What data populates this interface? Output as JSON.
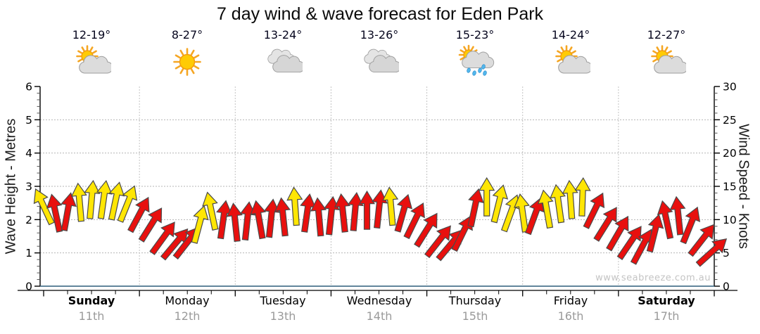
{
  "title": "7 day wind & wave forecast for Eden Park",
  "watermark": "www.seabreeze.com.au",
  "colors": {
    "arrow_red": "#E8100E",
    "arrow_yellow": "#FFE604",
    "arrow_outline": "#4a4a4a",
    "baseline_blue": "#2d5d7a",
    "grid_gray": "#b5b5b5",
    "date_gray": "#9a9a9a",
    "watermark_gray": "#c4c4c4"
  },
  "chart_data": {
    "type": "scatter",
    "marker": "wind-direction-arrow",
    "title": "7 day wind & wave forecast for Eden Park",
    "left_axis": {
      "label": "Wave Height - Metres",
      "ticks": [
        "0",
        "1",
        "2",
        "3",
        "4",
        "5",
        "6"
      ],
      "range": [
        0,
        6
      ]
    },
    "right_axis": {
      "label": "Wind Speed - Knots",
      "ticks": [
        "0",
        "5",
        "10",
        "15",
        "20",
        "25",
        "30"
      ],
      "range": [
        0,
        30
      ]
    },
    "grid": "dotted horizontal line every 5 knots (1 m), dotted vertical line at each day boundary",
    "days": [
      {
        "name": "Sunday",
        "date": "11th",
        "temps": "12-19°",
        "icon": "partly-cloudy",
        "weekend": true
      },
      {
        "name": "Monday",
        "date": "12th",
        "temps": "8-27°",
        "icon": "sunny",
        "weekend": false
      },
      {
        "name": "Tuesday",
        "date": "13th",
        "temps": "13-24°",
        "icon": "cloudy",
        "weekend": false
      },
      {
        "name": "Wednesday",
        "date": "14th",
        "temps": "13-26°",
        "icon": "cloudy",
        "weekend": false
      },
      {
        "name": "Thursday",
        "date": "15th",
        "temps": "15-23°",
        "icon": "showers",
        "weekend": false
      },
      {
        "name": "Friday",
        "date": "16th",
        "temps": "14-24°",
        "icon": "partly-cloudy",
        "weekend": false
      },
      {
        "name": "Saturday",
        "date": "17th",
        "temps": "12-27°",
        "icon": "partly-cloudy",
        "weekend": true
      }
    ],
    "point_format": [
      "day",
      "hour_24",
      "wind_speed_knots",
      "arrow_color",
      "direction_deg_clockwise_from_up"
    ],
    "points": [
      [
        "Sunday",
        0,
        12.0,
        "yellow",
        -25
      ],
      [
        "Sunday",
        3,
        11.0,
        "red",
        -12
      ],
      [
        "Sunday",
        6,
        11.2,
        "red",
        10
      ],
      [
        "Sunday",
        9,
        12.6,
        "yellow",
        -5
      ],
      [
        "Sunday",
        12,
        13.0,
        "yellow",
        5
      ],
      [
        "Sunday",
        15,
        13.0,
        "yellow",
        8
      ],
      [
        "Sunday",
        18,
        12.8,
        "yellow",
        12
      ],
      [
        "Sunday",
        21,
        12.4,
        "yellow",
        22
      ],
      [
        "Monday",
        0,
        10.8,
        "red",
        28
      ],
      [
        "Monday",
        3,
        9.3,
        "red",
        32
      ],
      [
        "Monday",
        6,
        7.3,
        "red",
        36
      ],
      [
        "Monday",
        9,
        6.4,
        "red",
        40
      ],
      [
        "Monday",
        12,
        6.6,
        "red",
        38
      ],
      [
        "Monday",
        15,
        9.3,
        "yellow",
        15
      ],
      [
        "Monday",
        18,
        11.3,
        "yellow",
        -12
      ],
      [
        "Monday",
        21,
        10.0,
        "red",
        8
      ],
      [
        "Tuesday",
        0,
        9.6,
        "red",
        -6
      ],
      [
        "Tuesday",
        3,
        9.8,
        "red",
        6
      ],
      [
        "Tuesday",
        6,
        10.0,
        "red",
        -10
      ],
      [
        "Tuesday",
        9,
        10.2,
        "red",
        6
      ],
      [
        "Tuesday",
        12,
        10.4,
        "red",
        -6
      ],
      [
        "Tuesday",
        15,
        12.0,
        "yellow",
        -4
      ],
      [
        "Tuesday",
        18,
        11.0,
        "red",
        8
      ],
      [
        "Tuesday",
        21,
        10.4,
        "red",
        -5
      ],
      [
        "Wednesday",
        0,
        10.6,
        "red",
        6
      ],
      [
        "Wednesday",
        3,
        11.0,
        "red",
        -6
      ],
      [
        "Wednesday",
        6,
        11.2,
        "red",
        5
      ],
      [
        "Wednesday",
        9,
        11.4,
        "red",
        0
      ],
      [
        "Wednesday",
        12,
        11.6,
        "red",
        6
      ],
      [
        "Wednesday",
        15,
        12.0,
        "yellow",
        -5
      ],
      [
        "Wednesday",
        18,
        11.0,
        "red",
        16
      ],
      [
        "Wednesday",
        21,
        9.9,
        "red",
        26
      ],
      [
        "Thursday",
        0,
        8.5,
        "red",
        32
      ],
      [
        "Thursday",
        3,
        6.8,
        "red",
        38
      ],
      [
        "Thursday",
        6,
        6.3,
        "red",
        40
      ],
      [
        "Thursday",
        9,
        8.0,
        "red",
        26
      ],
      [
        "Thursday",
        12,
        11.8,
        "red",
        12
      ],
      [
        "Thursday",
        15,
        13.4,
        "yellow",
        0
      ],
      [
        "Thursday",
        18,
        12.4,
        "yellow",
        14
      ],
      [
        "Thursday",
        21,
        11.0,
        "yellow",
        20
      ],
      [
        "Friday",
        0,
        11.0,
        "yellow",
        -8
      ],
      [
        "Friday",
        3,
        10.6,
        "red",
        20
      ],
      [
        "Friday",
        6,
        11.6,
        "yellow",
        -10
      ],
      [
        "Friday",
        9,
        12.4,
        "yellow",
        -8
      ],
      [
        "Friday",
        12,
        13.0,
        "yellow",
        -4
      ],
      [
        "Friday",
        15,
        13.4,
        "yellow",
        2
      ],
      [
        "Friday",
        18,
        11.4,
        "red",
        26
      ],
      [
        "Friday",
        21,
        9.4,
        "red",
        32
      ],
      [
        "Saturday",
        0,
        8.0,
        "red",
        30
      ],
      [
        "Saturday",
        3,
        6.6,
        "red",
        34
      ],
      [
        "Saturday",
        6,
        6.0,
        "red",
        28
      ],
      [
        "Saturday",
        9,
        8.0,
        "red",
        14
      ],
      [
        "Saturday",
        12,
        10.0,
        "red",
        -12
      ],
      [
        "Saturday",
        15,
        10.6,
        "red",
        -6
      ],
      [
        "Saturday",
        18,
        9.2,
        "red",
        22
      ],
      [
        "Saturday",
        21,
        7.0,
        "red",
        38
      ],
      [
        "Saturday",
        23.5,
        5.2,
        "red",
        48
      ]
    ]
  }
}
